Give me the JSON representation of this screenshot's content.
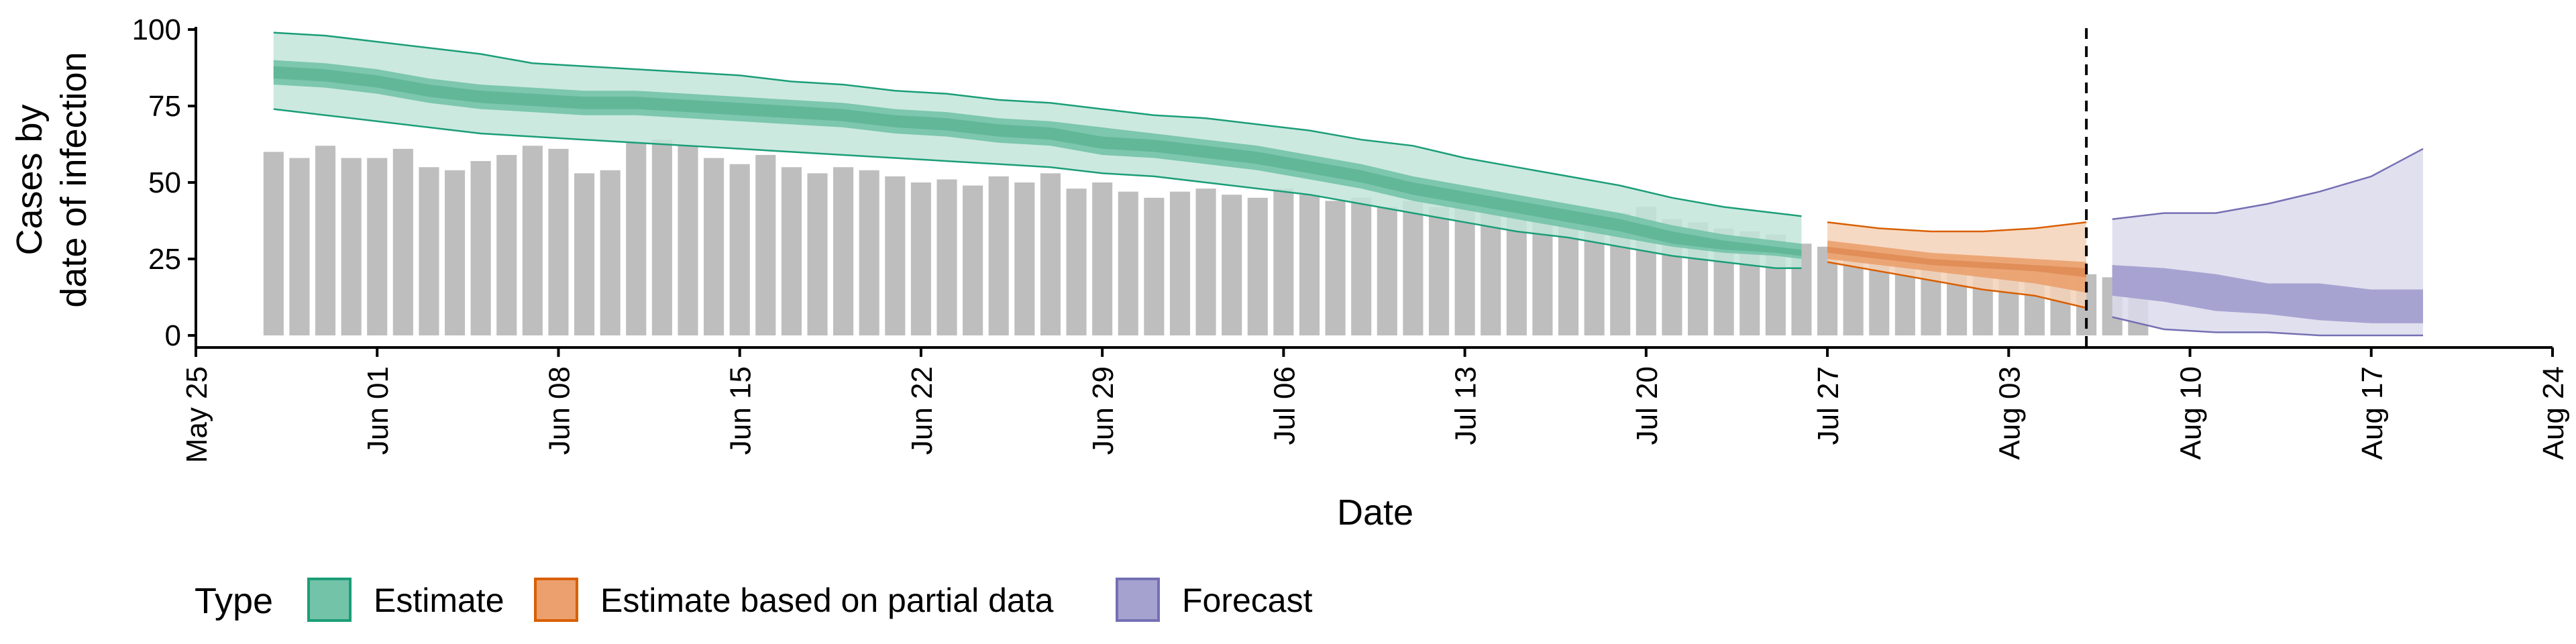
{
  "chart_data": {
    "type": "bar",
    "title": "",
    "xlabel": "Date",
    "ylabel_lines": [
      "Cases by",
      "date of infection"
    ],
    "ylim": [
      0,
      100
    ],
    "yticks": [
      0,
      25,
      50,
      75,
      100
    ],
    "x_start": "2020-05-25",
    "x_end": "2020-08-24",
    "xticks": [
      {
        "label": "May 25",
        "day": 0
      },
      {
        "label": "Jun 01",
        "day": 7
      },
      {
        "label": "Jun 08",
        "day": 14
      },
      {
        "label": "Jun 15",
        "day": 21
      },
      {
        "label": "Jun 22",
        "day": 28
      },
      {
        "label": "Jun 29",
        "day": 35
      },
      {
        "label": "Jul 06",
        "day": 42
      },
      {
        "label": "Jul 13",
        "day": 49
      },
      {
        "label": "Jul 20",
        "day": 56
      },
      {
        "label": "Jul 27",
        "day": 63
      },
      {
        "label": "Aug 03",
        "day": 70
      },
      {
        "label": "Aug 10",
        "day": 77
      },
      {
        "label": "Aug 17",
        "day": 84
      },
      {
        "label": "Aug 24",
        "day": 91
      }
    ],
    "bars": {
      "first_day": 3,
      "values": [
        60,
        58,
        62,
        58,
        58,
        61,
        55,
        54,
        57,
        59,
        62,
        61,
        53,
        54,
        63,
        64,
        62,
        58,
        56,
        59,
        55,
        53,
        55,
        54,
        52,
        50,
        51,
        49,
        52,
        50,
        53,
        48,
        50,
        47,
        45,
        47,
        48,
        46,
        45,
        48,
        46,
        44,
        45,
        42,
        44,
        42,
        44,
        43,
        41,
        42,
        40,
        41,
        40,
        42,
        38,
        37,
        35,
        34,
        33,
        30,
        29,
        27,
        26,
        26,
        24,
        23,
        22,
        21,
        22,
        21,
        20,
        19,
        20
      ]
    },
    "vline_day": 73,
    "series": [
      {
        "name": "Estimate",
        "type_key": "estimate",
        "color": "#1B9E77",
        "fill_outer": "#C3E5D9",
        "fill_inner": "#73C3A8",
        "fill_core": "#5FB597",
        "x_days": [
          3,
          5,
          7,
          9,
          11,
          13,
          15,
          17,
          19,
          21,
          23,
          25,
          27,
          29,
          31,
          33,
          35,
          37,
          39,
          41,
          43,
          45,
          47,
          49,
          51,
          53,
          55,
          57,
          59,
          61,
          62
        ],
        "outer_high": [
          99,
          98,
          96,
          94,
          92,
          89,
          88,
          87,
          86,
          85,
          83,
          82,
          80,
          79,
          77,
          76,
          74,
          72,
          71,
          69,
          67,
          64,
          62,
          58,
          55,
          52,
          49,
          45,
          42,
          40,
          39
        ],
        "inner_high": [
          90,
          89,
          87,
          84,
          82,
          81,
          80,
          80,
          79,
          78,
          77,
          76,
          74,
          73,
          71,
          70,
          68,
          66,
          64,
          62,
          59,
          56,
          52,
          49,
          46,
          43,
          40,
          36,
          33,
          31,
          30
        ],
        "core_high": [
          88,
          87,
          85,
          82,
          80,
          79,
          78,
          78,
          77,
          76,
          75,
          74,
          72,
          71,
          69,
          68,
          65,
          64,
          62,
          60,
          57,
          54,
          50,
          47,
          44,
          41,
          38,
          34,
          31,
          29,
          28
        ],
        "core_low": [
          84,
          83,
          81,
          78,
          76,
          75,
          74,
          74,
          73,
          72,
          71,
          70,
          68,
          67,
          65,
          64,
          61,
          60,
          58,
          56,
          53,
          50,
          46,
          43,
          40,
          37,
          34,
          30,
          28,
          27,
          26
        ],
        "inner_low": [
          82,
          81,
          79,
          76,
          74,
          73,
          72,
          72,
          71,
          70,
          69,
          68,
          66,
          65,
          63,
          62,
          59,
          58,
          56,
          54,
          51,
          48,
          44,
          41,
          38,
          35,
          32,
          29,
          27,
          26,
          25
        ],
        "outer_low": [
          74,
          72,
          70,
          68,
          66,
          65,
          64,
          63,
          62,
          61,
          60,
          59,
          58,
          57,
          56,
          55,
          53,
          52,
          50,
          48,
          46,
          43,
          40,
          37,
          34,
          32,
          29,
          26,
          24,
          22,
          22
        ]
      },
      {
        "name": "Estimate based on partial data",
        "type_key": "partial",
        "color": "#D95F02",
        "fill_outer": "#F5D2B8",
        "fill_inner": "#EBA06E",
        "fill_core": "#E08C56",
        "x_days": [
          63,
          65,
          67,
          69,
          71,
          73
        ],
        "outer_high": [
          37,
          35,
          34,
          34,
          35,
          37
        ],
        "inner_high": [
          31,
          29,
          27,
          26,
          25,
          24
        ],
        "core_high": [
          29,
          27,
          25,
          24,
          23,
          22
        ],
        "core_low": [
          27,
          25,
          23,
          22,
          21,
          19
        ],
        "inner_low": [
          25,
          23,
          21,
          19,
          17,
          14
        ],
        "outer_low": [
          24,
          21,
          18,
          15,
          13,
          9
        ]
      },
      {
        "name": "Forecast",
        "type_key": "forecast",
        "color": "#7570B3",
        "fill_outer": "#DCDBEC",
        "fill_inner": "#A6A2D0",
        "fill_core": "#A6A2D0",
        "x_days": [
          74,
          76,
          78,
          80,
          82,
          84,
          86
        ],
        "outer_high": [
          38,
          40,
          40,
          43,
          47,
          52,
          61
        ],
        "inner_high": [
          23,
          22,
          20,
          17,
          17,
          15,
          15
        ],
        "core_high": [
          23,
          22,
          20,
          17,
          17,
          15,
          15
        ],
        "core_low": [
          13,
          11,
          8,
          7,
          5,
          4,
          4
        ],
        "inner_low": [
          13,
          11,
          8,
          7,
          5,
          4,
          4
        ],
        "outer_low": [
          6,
          2,
          1,
          1,
          0,
          0,
          0
        ]
      }
    ],
    "legend": {
      "title": "Type",
      "placement": "bottom",
      "items": [
        {
          "label": "Estimate",
          "type_key": "estimate",
          "fill": "#73C3A8",
          "border": "#1B9E77"
        },
        {
          "label": "Estimate based on partial data",
          "type_key": "partial",
          "fill": "#EBA06E",
          "border": "#D95F02"
        },
        {
          "label": "Forecast",
          "type_key": "forecast",
          "fill": "#A6A2D0",
          "border": "#7570B3"
        }
      ]
    }
  }
}
